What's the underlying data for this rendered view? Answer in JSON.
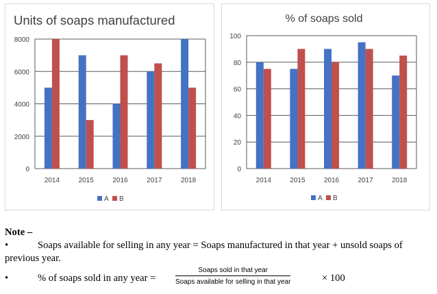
{
  "chart_data": [
    {
      "type": "bar",
      "title": "Units of soaps manufactured",
      "categories": [
        "2014",
        "2015",
        "2016",
        "2017",
        "2018"
      ],
      "series": [
        {
          "name": "A",
          "values": [
            5000,
            7000,
            4000,
            6000,
            8000
          ],
          "color": "#4472c4"
        },
        {
          "name": "B",
          "values": [
            8000,
            3000,
            7000,
            6500,
            5000
          ],
          "color": "#c0504d"
        }
      ],
      "yticks": [
        "0",
        "2000",
        "4000",
        "6000",
        "8000"
      ],
      "ylim": [
        0,
        8000
      ],
      "grid": true,
      "legend_position": "bottom"
    },
    {
      "type": "bar",
      "title": "% of soaps sold",
      "categories": [
        "2014",
        "2015",
        "2016",
        "2017",
        "2018"
      ],
      "series": [
        {
          "name": "A",
          "values": [
            80,
            75,
            90,
            95,
            70
          ],
          "color": "#4472c4"
        },
        {
          "name": "B",
          "values": [
            75,
            90,
            80,
            90,
            85
          ],
          "color": "#c0504d"
        }
      ],
      "yticks": [
        "0",
        "20",
        "40",
        "60",
        "80",
        "100"
      ],
      "ylim": [
        0,
        100
      ],
      "grid": true,
      "legend_position": "bottom"
    }
  ],
  "note": {
    "title": "Note –",
    "bullet": "•",
    "line1": "Soaps available for selling in any year = Soaps manufactured in that year + unsold soaps of previous year.",
    "formula_lhs": "% of soaps sold in any year =",
    "formula_numerator": "Soaps sold in that year",
    "formula_denominator": "Soaps available for selling in that year",
    "formula_rhs": "× 100"
  }
}
